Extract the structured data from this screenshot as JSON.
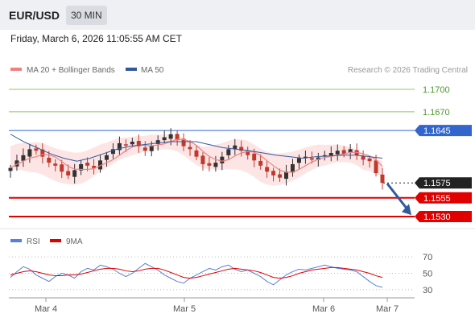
{
  "header": {
    "pair": "EUR/USD",
    "timeframe": "30 MIN",
    "datetime": "Friday, March 6, 2026 11:05:55 AM CET"
  },
  "legend": {
    "items": [
      {
        "label": "MA 20 + Bollinger Bands",
        "color": "#f08080"
      },
      {
        "label": "MA 50",
        "color": "#2f5a9e"
      }
    ],
    "credit": "Research © 2026 Trading Central"
  },
  "rsi_legend": {
    "items": [
      {
        "label": "RSI",
        "color": "#5b7fd6"
      },
      {
        "label": "9MA",
        "color": "#e00000"
      }
    ]
  },
  "colors": {
    "resistance_green": "#8fc96b",
    "pivot_blue": "#3366cc",
    "support_red": "#e00000",
    "current_black": "#222222",
    "arrow_blue": "#2f5a9e",
    "band_fill": "#fde0e0",
    "candle_up": "#333333",
    "candle_down": "#c0392b"
  },
  "chart_data": [
    {
      "type": "line",
      "name": "price",
      "ylim": [
        1.1515,
        1.1715
      ],
      "x_ticks": [
        "Mar 4",
        "Mar 5",
        "Mar 6",
        "Mar 7"
      ],
      "levels": [
        {
          "value": 1.17,
          "label": "1.1700",
          "role": "resistance"
        },
        {
          "value": 1.167,
          "label": "1.1670",
          "role": "resistance"
        },
        {
          "value": 1.1645,
          "label": "1.1645",
          "role": "pivot"
        },
        {
          "value": 1.1575,
          "label": "1.1575",
          "role": "last"
        },
        {
          "value": 1.1555,
          "label": "1.1555",
          "role": "support"
        },
        {
          "value": 1.153,
          "label": "1.1530",
          "role": "support"
        }
      ],
      "close_path": [
        1.1595,
        1.1605,
        1.1612,
        1.162,
        1.1618,
        1.161,
        1.1602,
        1.1598,
        1.159,
        1.1585,
        1.1592,
        1.16,
        1.1598,
        1.1595,
        1.1605,
        1.1612,
        1.162,
        1.1628,
        1.1625,
        1.163,
        1.1624,
        1.1618,
        1.1625,
        1.1632,
        1.1636,
        1.164,
        1.1632,
        1.1624,
        1.162,
        1.161,
        1.16,
        1.1598,
        1.1602,
        1.161,
        1.162,
        1.1625,
        1.1618,
        1.1612,
        1.1605,
        1.1598,
        1.159,
        1.1585,
        1.1582,
        1.159,
        1.16,
        1.1608,
        1.161,
        1.1606,
        1.1609,
        1.1612,
        1.1615,
        1.1618,
        1.1614,
        1.162,
        1.1612,
        1.1606,
        1.1604,
        1.1588,
        1.1575
      ],
      "ma50_path": [
        1.164,
        1.163,
        1.1622,
        1.1614,
        1.1608,
        1.1604,
        1.1608,
        1.1614,
        1.162,
        1.1624,
        1.1626,
        1.1628,
        1.163,
        1.163,
        1.163,
        1.1626,
        1.1622,
        1.162,
        1.1618,
        1.1615,
        1.1612,
        1.161,
        1.1608,
        1.161,
        1.1611,
        1.1612,
        1.1612,
        1.161,
        1.1608
      ],
      "arrow": {
        "from": 1.1574,
        "to": 1.1532
      }
    },
    {
      "type": "line",
      "name": "RSI",
      "ylim": [
        25,
        75
      ],
      "y_ticks": [
        70,
        50,
        30
      ],
      "rsi": [
        45,
        52,
        58,
        55,
        48,
        44,
        40,
        46,
        50,
        48,
        44,
        52,
        56,
        54,
        60,
        58,
        55,
        50,
        46,
        50,
        56,
        62,
        58,
        54,
        48,
        44,
        40,
        38,
        44,
        48,
        52,
        56,
        54,
        58,
        60,
        55,
        52,
        54,
        50,
        46,
        40,
        36,
        42,
        48,
        52,
        55,
        54,
        56,
        58,
        60,
        58,
        56,
        55,
        54,
        52,
        46,
        40,
        35,
        33
      ],
      "ma9": [
        48,
        50,
        52,
        53,
        52,
        50,
        48,
        47,
        47,
        48,
        48,
        49,
        51,
        53,
        55,
        56,
        56,
        55,
        53,
        52,
        53,
        55,
        56,
        56,
        54,
        51,
        48,
        45,
        44,
        45,
        47,
        49,
        51,
        53,
        55,
        56,
        55,
        54,
        53,
        51,
        48,
        45,
        44,
        45,
        47,
        50,
        52,
        54,
        55,
        56,
        57,
        57,
        56,
        55,
        54,
        52,
        50,
        47,
        45
      ]
    }
  ]
}
